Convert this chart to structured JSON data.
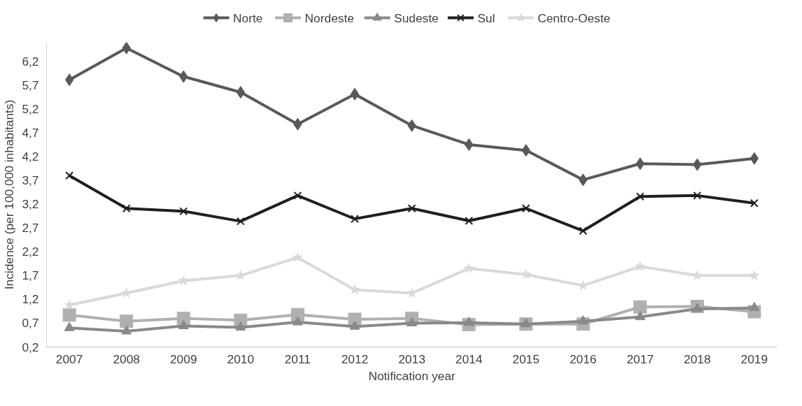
{
  "chart_data": {
    "type": "line",
    "xlabel": "Notification year",
    "ylabel": "Incidence (per 100,000 inhabitants)",
    "categories": [
      "2007",
      "2008",
      "2009",
      "2010",
      "2011",
      "2012",
      "2013",
      "2014",
      "2015",
      "2016",
      "2017",
      "2018",
      "2019"
    ],
    "series": [
      {
        "name": "Norte",
        "color": "#595959",
        "marker": "diamond",
        "values": [
          5.81,
          6.48,
          5.88,
          5.55,
          4.88,
          5.51,
          4.85,
          4.45,
          4.33,
          3.71,
          4.05,
          4.03,
          4.16
        ]
      },
      {
        "name": "Nordeste",
        "color": "#b0b0b0",
        "marker": "square",
        "values": [
          0.87,
          0.74,
          0.8,
          0.76,
          0.88,
          0.78,
          0.8,
          0.67,
          0.68,
          0.68,
          1.04,
          1.05,
          0.94
        ]
      },
      {
        "name": "Sudeste",
        "color": "#898989",
        "marker": "triangle",
        "values": [
          0.6,
          0.53,
          0.64,
          0.61,
          0.72,
          0.63,
          0.7,
          0.71,
          0.68,
          0.74,
          0.83,
          1.0,
          1.02
        ]
      },
      {
        "name": "Sul",
        "color": "#1f1f1f",
        "marker": "cross",
        "values": [
          3.8,
          3.11,
          3.05,
          2.84,
          3.38,
          2.89,
          3.11,
          2.85,
          3.11,
          2.64,
          3.36,
          3.38,
          3.22
        ]
      },
      {
        "name": "Centro-Oeste",
        "color": "#d9d9d9",
        "marker": "star",
        "values": [
          1.08,
          1.33,
          1.59,
          1.7,
          2.08,
          1.4,
          1.33,
          1.85,
          1.72,
          1.49,
          1.89,
          1.7,
          1.7
        ]
      }
    ],
    "ylim": [
      0.2,
      6.6
    ],
    "yticks": [
      {
        "value": 0.2,
        "label": "0,2"
      },
      {
        "value": 0.7,
        "label": "0,7"
      },
      {
        "value": 1.2,
        "label": "1,2"
      },
      {
        "value": 1.7,
        "label": "1,7"
      },
      {
        "value": 2.2,
        "label": "2,2"
      },
      {
        "value": 2.7,
        "label": "2,7"
      },
      {
        "value": 3.2,
        "label": "3,2"
      },
      {
        "value": 3.7,
        "label": "3,7"
      },
      {
        "value": 4.2,
        "label": "4,2"
      },
      {
        "value": 4.7,
        "label": "4,7"
      },
      {
        "value": 5.2,
        "label": "5,2"
      },
      {
        "value": 5.7,
        "label": "5,7"
      },
      {
        "value": 6.2,
        "label": "6,2"
      }
    ],
    "grid": false,
    "legend": "top",
    "line_style": "solid"
  }
}
